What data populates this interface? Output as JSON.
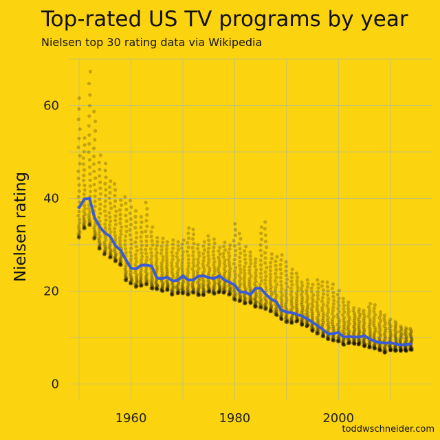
{
  "chart_data": {
    "type": "scatter",
    "title": "Top-rated US TV programs by year",
    "subtitle": "Nielsen top 30 rating data via Wikipedia",
    "xlabel": "",
    "ylabel": "Nielsen rating",
    "xlim": [
      1948,
      2018
    ],
    "ylim": [
      -3.5,
      70
    ],
    "x_ticks": [
      1960,
      1980,
      2000
    ],
    "y_ticks": [
      0,
      20,
      40,
      60
    ],
    "grid": true,
    "legend": "none",
    "credit": "toddwschneider.com",
    "point_color": "#000000",
    "trend_color": "#3B5BD6",
    "series": [
      {
        "kind": "points",
        "note_shape": "approx per-year rank points",
        "points_per_year": 30,
        "years": [
          1950,
          1951,
          1952,
          1953,
          1954,
          1955,
          1956,
          1957,
          1958,
          1959,
          1960,
          1961,
          1962,
          1963,
          1964,
          1965,
          1966,
          1967,
          1968,
          1969,
          1970,
          1971,
          1972,
          1973,
          1974,
          1975,
          1976,
          1977,
          1978,
          1979,
          1980,
          1981,
          1982,
          1983,
          1984,
          1985,
          1986,
          1987,
          1988,
          1989,
          1990,
          1991,
          1992,
          1993,
          1994,
          1995,
          1996,
          1997,
          1998,
          1999,
          2000,
          2001,
          2002,
          2003,
          2004,
          2005,
          2006,
          2007,
          2008,
          2009,
          2010,
          2011,
          2012,
          2013,
          2014
        ],
        "top_rating": [
          61.6,
          53,
          67.3,
          58.7,
          49.3,
          47.5,
          43.7,
          43.1,
          39.6,
          40.3,
          39.5,
          37.3,
          36,
          39.1,
          33.8,
          31.5,
          31.4,
          30.6,
          31,
          30.6,
          31,
          33.6,
          33.3,
          30,
          30.6,
          31.9,
          31.2,
          29.4,
          30.5,
          29.9,
          34.5,
          32.4,
          29.6,
          28.4,
          26.9,
          33.8,
          34.9,
          28,
          27.4,
          27.8,
          26.3,
          24.7,
          23.8,
          21.9,
          22.4,
          21.4,
          22.4,
          22,
          21.9,
          21.5,
          20.1,
          18.4,
          17.6,
          16.4,
          16.1,
          15.8,
          17.3,
          17,
          15.5,
          14.8,
          13.9,
          13.4,
          12.4,
          12.1,
          11.9
        ],
        "bottom_rating": [
          31.5,
          33.5,
          34.2,
          31.3,
          29.1,
          27.9,
          27.2,
          26.4,
          25.6,
          22.3,
          21.6,
          20.9,
          21.1,
          21.4,
          20.5,
          20.4,
          20,
          20.2,
          19.2,
          19.5,
          19.5,
          19.2,
          19.6,
          19.1,
          19.1,
          19.8,
          19.4,
          19.7,
          19.6,
          19.2,
          18.1,
          17.8,
          17.3,
          17.4,
          16.6,
          16.4,
          16.1,
          15.6,
          14.8,
          13.9,
          13.3,
          13.1,
          13.4,
          12.7,
          12.4,
          11.4,
          10.8,
          10.2,
          9.6,
          9.3,
          9.1,
          8.4,
          8.7,
          8.6,
          8.5,
          8.1,
          7.8,
          7.6,
          7.2,
          6.7,
          7.2,
          7.1,
          7.1,
          7.1,
          7.3
        ]
      },
      {
        "kind": "line",
        "name": "",
        "x": [
          1950,
          1951,
          1952,
          1953,
          1954,
          1955,
          1956,
          1957,
          1958,
          1959,
          1960,
          1961,
          1962,
          1963,
          1964,
          1965,
          1966,
          1967,
          1968,
          1969,
          1970,
          1971,
          1972,
          1973,
          1974,
          1975,
          1976,
          1977,
          1978,
          1979,
          1980,
          1981,
          1982,
          1983,
          1984,
          1985,
          1986,
          1987,
          1988,
          1989,
          1990,
          1991,
          1992,
          1993,
          1994,
          1995,
          1996,
          1997,
          1998,
          1999,
          2000,
          2001,
          2002,
          2003,
          2004,
          2005,
          2006,
          2007,
          2008,
          2009,
          2010,
          2011,
          2012,
          2013,
          2014
        ],
        "y": [
          38,
          39.8,
          40,
          35.8,
          33.8,
          32.5,
          31.8,
          29.8,
          28.8,
          26.8,
          24.9,
          24.8,
          25.6,
          25.6,
          25.4,
          22.8,
          22.7,
          23,
          22.2,
          22.3,
          23.3,
          22.4,
          22.4,
          23.2,
          23.3,
          22.9,
          22.7,
          23.3,
          22.4,
          21.9,
          21.3,
          19.8,
          19.8,
          19.2,
          20.6,
          20.6,
          19.3,
          18.3,
          17.7,
          15.9,
          15.5,
          15.3,
          15,
          14.6,
          14,
          13.3,
          12.5,
          11.7,
          10.8,
          10.8,
          11.1,
          10.1,
          10.2,
          10.1,
          10.1,
          10.4,
          9.7,
          9.2,
          8.9,
          8.8,
          8.9,
          8.6,
          8.4,
          8.5,
          8.6
        ]
      }
    ]
  }
}
